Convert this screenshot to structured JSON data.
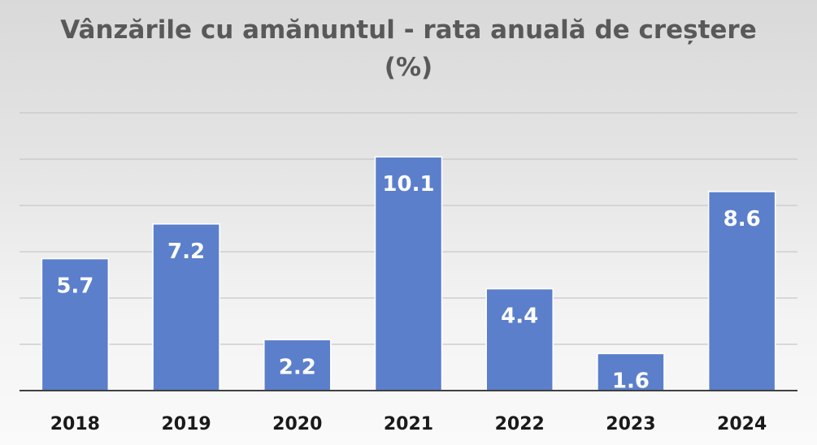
{
  "chart_data": {
    "type": "bar",
    "title_line1": "Vânzările cu amănuntul - rata anuală de creștere",
    "title_line2": "(%)",
    "categories": [
      "2018",
      "2019",
      "2020",
      "2021",
      "2022",
      "2023",
      "2024"
    ],
    "values": [
      5.7,
      7.2,
      2.2,
      10.1,
      4.4,
      1.6,
      8.6
    ],
    "value_labels": [
      "5.7",
      "7.2",
      "2.2",
      "10.1",
      "4.4",
      "1.6",
      "8.6"
    ],
    "ylim": [
      0,
      12
    ],
    "gridlines": [
      0,
      2,
      4,
      6,
      8,
      10,
      12
    ],
    "grid": true,
    "y_tick_labels_visible": false,
    "legend": "none",
    "bar_color": "#5b7fcb",
    "value_label_color": "#ffffff",
    "axis_label_color": "#1a1a1a"
  }
}
